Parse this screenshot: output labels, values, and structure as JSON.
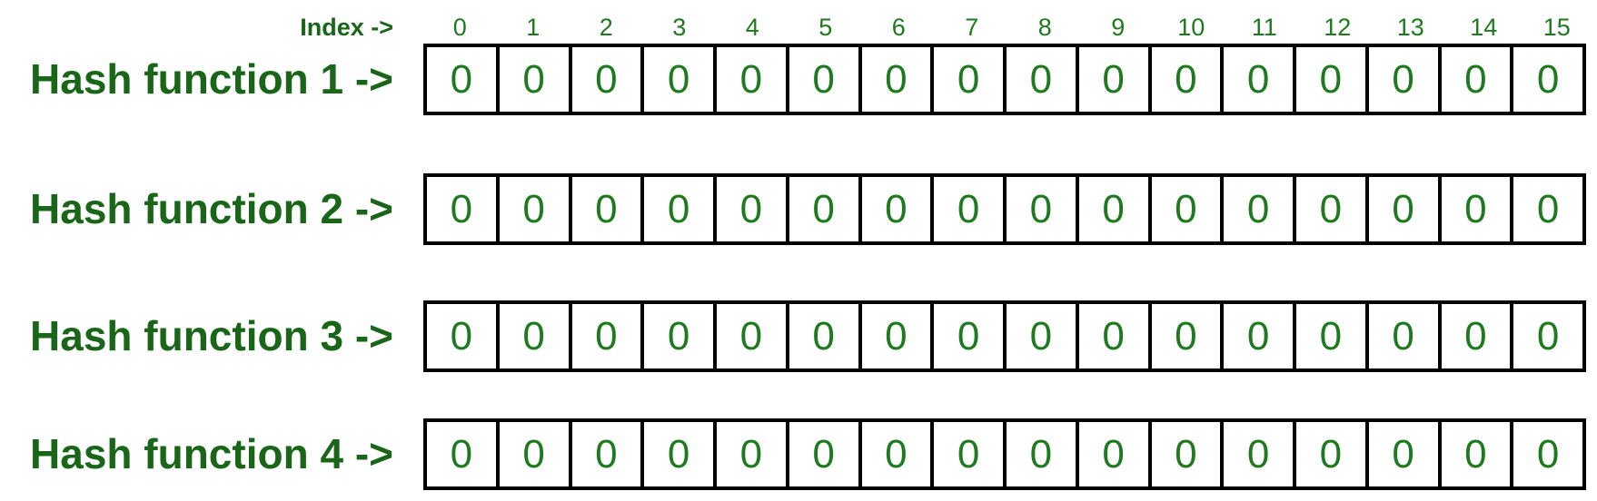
{
  "diagram": {
    "index_row": {
      "label": "Index ->",
      "indices": [
        "0",
        "1",
        "2",
        "3",
        "4",
        "5",
        "6",
        "7",
        "8",
        "9",
        "10",
        "11",
        "12",
        "13",
        "14",
        "15"
      ]
    },
    "rows": [
      {
        "label": "Hash function 1 ->",
        "cells": [
          "0",
          "0",
          "0",
          "0",
          "0",
          "0",
          "0",
          "0",
          "0",
          "0",
          "0",
          "0",
          "0",
          "0",
          "0",
          "0"
        ]
      },
      {
        "label": "Hash function 2 ->",
        "cells": [
          "0",
          "0",
          "0",
          "0",
          "0",
          "0",
          "0",
          "0",
          "0",
          "0",
          "0",
          "0",
          "0",
          "0",
          "0",
          "0"
        ]
      },
      {
        "label": "Hash function 3 ->",
        "cells": [
          "0",
          "0",
          "0",
          "0",
          "0",
          "0",
          "0",
          "0",
          "0",
          "0",
          "0",
          "0",
          "0",
          "0",
          "0",
          "0"
        ]
      },
      {
        "label": "Hash function 4 ->",
        "cells": [
          "0",
          "0",
          "0",
          "0",
          "0",
          "0",
          "0",
          "0",
          "0",
          "0",
          "0",
          "0",
          "0",
          "0",
          "0",
          "0"
        ]
      }
    ],
    "colors": {
      "label_green": "#196619",
      "value_green": "#1e7a1e",
      "border": "#000000",
      "background": "#ffffff"
    }
  }
}
